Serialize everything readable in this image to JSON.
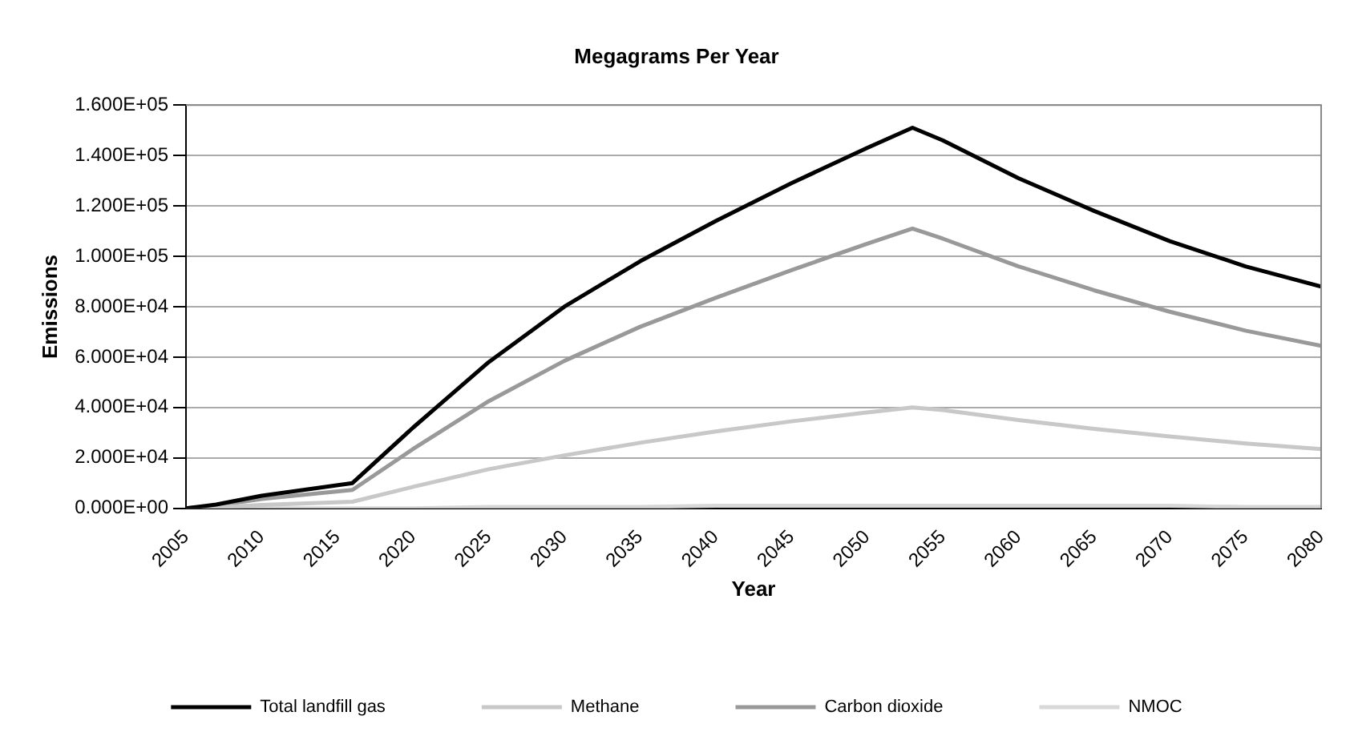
{
  "chart_data": {
    "type": "line",
    "title": "Megagrams Per Year",
    "xlabel": "Year",
    "ylabel": "Emissions",
    "x": [
      2005,
      2007,
      2010,
      2016,
      2020,
      2025,
      2030,
      2035,
      2040,
      2045,
      2050,
      2053,
      2055,
      2060,
      2065,
      2070,
      2075,
      2080
    ],
    "series": [
      {
        "name": "Total landfill gas",
        "color": "#000000",
        "values": [
          0,
          1500,
          5000,
          10000,
          32000,
          58000,
          80000,
          98000,
          114000,
          129000,
          143000,
          151000,
          146000,
          131000,
          118000,
          106000,
          96000,
          88000
        ]
      },
      {
        "name": "Methane",
        "color": "#c8c8c8",
        "values": [
          0,
          400,
          1300,
          2600,
          8500,
          15500,
          21000,
          26000,
          30500,
          34500,
          38000,
          40000,
          39000,
          35000,
          31500,
          28500,
          25700,
          23500
        ]
      },
      {
        "name": "Carbon dioxide",
        "color": "#999999",
        "values": [
          0,
          1100,
          3700,
          7300,
          23500,
          42500,
          58500,
          72000,
          83500,
          94500,
          105000,
          111000,
          107000,
          96000,
          86500,
          78000,
          70500,
          64500
        ]
      },
      {
        "name": "NMOC",
        "color": "#d8d8d8",
        "values": [
          0,
          0,
          0,
          0,
          0,
          500,
          500,
          500,
          1000,
          1000,
          1000,
          1000,
          1000,
          1000,
          1000,
          1000,
          500,
          500
        ]
      }
    ],
    "xlim": [
      2005,
      2080
    ],
    "xticks": [
      2005,
      2010,
      2015,
      2020,
      2025,
      2030,
      2035,
      2040,
      2045,
      2050,
      2055,
      2060,
      2065,
      2070,
      2075,
      2080
    ],
    "ylim": [
      0,
      160000
    ],
    "yticks": [
      {
        "value": 0,
        "label": "0.000E+00"
      },
      {
        "value": 20000,
        "label": "2.000E+04"
      },
      {
        "value": 40000,
        "label": "4.000E+04"
      },
      {
        "value": 60000,
        "label": "6.000E+04"
      },
      {
        "value": 80000,
        "label": "8.000E+04"
      },
      {
        "value": 100000,
        "label": "1.000E+05"
      },
      {
        "value": 120000,
        "label": "1.200E+05"
      },
      {
        "value": 140000,
        "label": "1.400E+05"
      },
      {
        "value": 160000,
        "label": "1.600E+05"
      }
    ],
    "grid": "y",
    "legend": "bottom",
    "marker": "none",
    "line_style": "solid"
  }
}
